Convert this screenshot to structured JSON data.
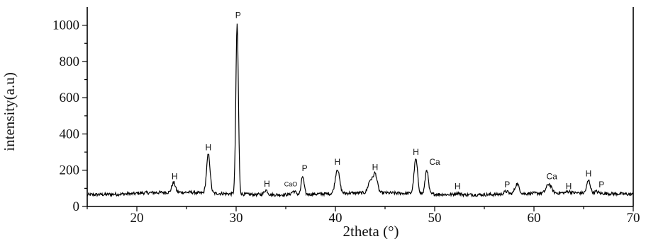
{
  "chart_data": {
    "type": "line",
    "title": "",
    "xlabel": "2theta (°)",
    "ylabel": "intensity(a.u)",
    "xlim": [
      15,
      70
    ],
    "ylim": [
      0,
      1100
    ],
    "x_ticks": [
      20,
      30,
      40,
      50,
      60,
      70
    ],
    "y_ticks": [
      0,
      200,
      400,
      600,
      800,
      1000
    ],
    "grid": false,
    "baseline": 70,
    "peaks": [
      {
        "x": 23.7,
        "y": 125,
        "w": 0.25
      },
      {
        "x": 27.2,
        "y": 285,
        "w": 0.25
      },
      {
        "x": 30.1,
        "y": 1010,
        "w": 0.18
      },
      {
        "x": 33.0,
        "y": 95,
        "w": 0.25
      },
      {
        "x": 35.8,
        "y": 88,
        "w": 0.3
      },
      {
        "x": 36.7,
        "y": 170,
        "w": 0.2
      },
      {
        "x": 40.2,
        "y": 205,
        "w": 0.3
      },
      {
        "x": 43.5,
        "y": 135,
        "w": 0.3
      },
      {
        "x": 44.0,
        "y": 175,
        "w": 0.3
      },
      {
        "x": 48.1,
        "y": 260,
        "w": 0.25
      },
      {
        "x": 49.2,
        "y": 205,
        "w": 0.22
      },
      {
        "x": 52.3,
        "y": 80,
        "w": 0.3
      },
      {
        "x": 57.2,
        "y": 85,
        "w": 0.3
      },
      {
        "x": 58.3,
        "y": 125,
        "w": 0.3
      },
      {
        "x": 61.5,
        "y": 120,
        "w": 0.35
      },
      {
        "x": 63.5,
        "y": 78,
        "w": 0.3
      },
      {
        "x": 65.5,
        "y": 140,
        "w": 0.25
      },
      {
        "x": 66.3,
        "y": 80,
        "w": 0.25
      }
    ],
    "annotations": [
      {
        "text": "P",
        "x": 30.2,
        "y": 1040
      },
      {
        "text": "H",
        "x": 27.2,
        "y": 310
      },
      {
        "text": "H",
        "x": 23.8,
        "y": 150
      },
      {
        "text": "H",
        "x": 33.1,
        "y": 110
      },
      {
        "text": "CaO",
        "x": 35.5,
        "y": 112,
        "small": true
      },
      {
        "text": "P",
        "x": 36.9,
        "y": 195
      },
      {
        "text": "H",
        "x": 40.2,
        "y": 230
      },
      {
        "text": "H",
        "x": 44.0,
        "y": 200
      },
      {
        "text": "H",
        "x": 48.1,
        "y": 285
      },
      {
        "text": "Ca",
        "x": 50.0,
        "y": 230
      },
      {
        "text": "H",
        "x": 52.3,
        "y": 95
      },
      {
        "text": "P",
        "x": 57.3,
        "y": 105
      },
      {
        "text": "Ca",
        "x": 61.8,
        "y": 150
      },
      {
        "text": "H",
        "x": 63.5,
        "y": 95
      },
      {
        "text": "H",
        "x": 65.5,
        "y": 165
      },
      {
        "text": "P",
        "x": 66.8,
        "y": 105
      }
    ],
    "colors": {
      "line": "#000000",
      "axis": "#000000"
    }
  }
}
